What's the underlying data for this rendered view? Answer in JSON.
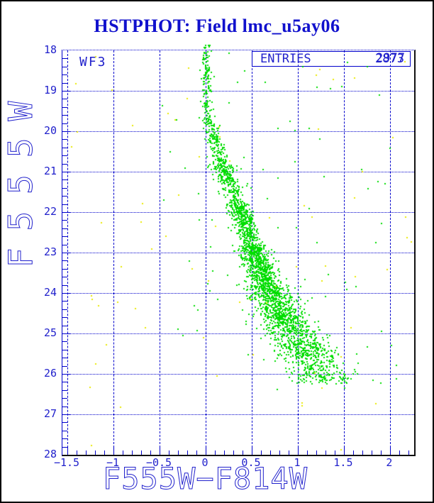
{
  "window": {
    "background": "#ffffff",
    "border_color": "#000000"
  },
  "title": {
    "text": "HSTPHOT: Field lmc_u5ay06",
    "color": "#1111cd"
  },
  "annotations": {
    "chip_label": "WF3",
    "entries_label": "ENTRIES",
    "entries_values": [
      "2873",
      "2977"
    ],
    "entries_values_note": "two counts are over-printed on top of each other in the box"
  },
  "chart_data": {
    "type": "scatter",
    "title": "HSTPHOT: Field lmc_u5ay06",
    "xlabel": "F555W−F814W",
    "ylabel": "F555W",
    "xlim": [
      -1.554,
      2.262
    ],
    "ylim_top": 18,
    "ylim_bottom": 28,
    "y_axis_inverted": true,
    "grid": {
      "on": true,
      "color": "#0000cc",
      "horizontal_style": "dotted",
      "vertical_style": "dashed"
    },
    "x_axis": {
      "major_tick_values": [
        -1.5,
        -1,
        -0.5,
        0,
        0.5,
        1,
        1.5,
        2
      ],
      "major_tick_labels": [
        "−1.5",
        "−1",
        "−0.5",
        "0",
        "0.5",
        "1",
        "1.5",
        "2"
      ],
      "minor_tick_step": 0.1
    },
    "y_axis": {
      "major_tick_values": [
        18,
        19,
        20,
        21,
        22,
        23,
        24,
        25,
        26,
        27,
        28
      ],
      "major_tick_labels": [
        "18",
        "19",
        "20",
        "21",
        "22",
        "23",
        "24",
        "25",
        "26",
        "27",
        "28"
      ],
      "minor_tick_step": 0.2
    },
    "seed": 1337,
    "note": "dense CMD point cloud reproduced from a density model of the visible main sequence; ~2900 green detections plus sparse yellow flagged points",
    "series": [
      {
        "name": "detected-stars",
        "color": "#00dd00",
        "marker": "square",
        "marker_size": 2,
        "main_sequence_segments": [
          {
            "mag_from": 17.85,
            "mag_to": 19.6,
            "color_from": 0.0,
            "color_to": 0.02,
            "sigma": 0.03,
            "n": 120
          },
          {
            "mag_from": 19.6,
            "mag_to": 20.8,
            "color_from": 0.02,
            "color_to": 0.17,
            "sigma": 0.045,
            "n": 170
          },
          {
            "mag_from": 20.8,
            "mag_to": 21.8,
            "color_from": 0.17,
            "color_to": 0.35,
            "sigma": 0.055,
            "n": 260
          },
          {
            "mag_from": 21.8,
            "mag_to": 22.8,
            "color_from": 0.35,
            "color_to": 0.5,
            "sigma": 0.06,
            "n": 380
          },
          {
            "mag_from": 22.8,
            "mag_to": 23.8,
            "color_from": 0.5,
            "color_to": 0.66,
            "sigma": 0.08,
            "n": 600
          },
          {
            "mag_from": 23.8,
            "mag_to": 24.8,
            "color_from": 0.66,
            "color_to": 0.9,
            "sigma": 0.12,
            "n": 640
          },
          {
            "mag_from": 24.8,
            "mag_to": 25.6,
            "color_from": 0.9,
            "color_to": 1.12,
            "sigma": 0.16,
            "n": 420
          },
          {
            "mag_from": 25.6,
            "mag_to": 26.25,
            "color_from": 1.12,
            "color_to": 1.3,
            "sigma": 0.18,
            "n": 220
          }
        ],
        "outliers": {
          "n": 85,
          "color_min": -0.5,
          "color_max": 2.2,
          "mag_min": 17.9,
          "mag_max": 26.4
        }
      },
      {
        "name": "flagged-stars",
        "color": "#e8e800",
        "marker": "square",
        "marker_size": 2,
        "uniform": {
          "n": 70,
          "color_min": -1.5,
          "color_max": 2.25,
          "mag_min": 18.05,
          "mag_max": 27.9
        }
      }
    ]
  }
}
